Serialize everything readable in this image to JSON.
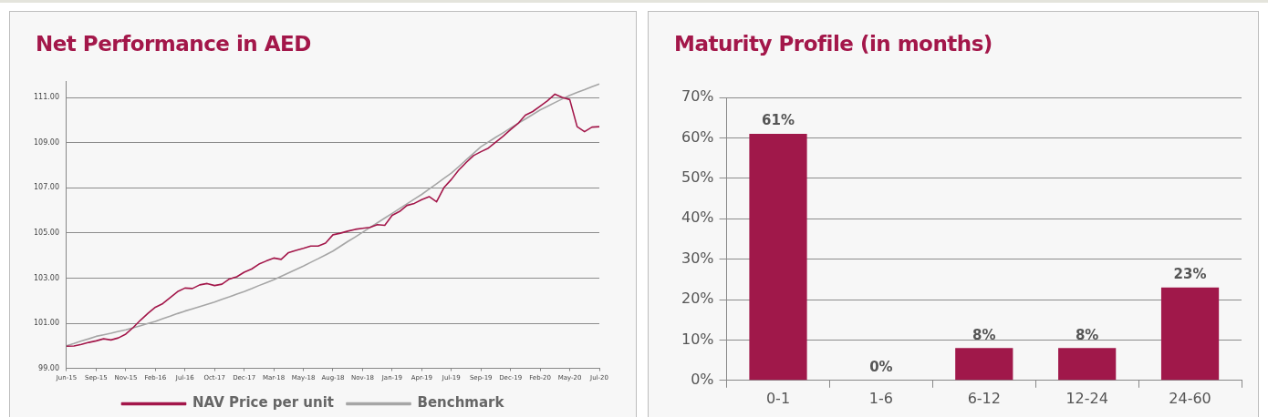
{
  "chart_data": [
    {
      "type": "line",
      "title": "Net Performance in AED",
      "categories": [
        "Jun-15",
        null,
        null,
        null,
        "Sep-15",
        null,
        null,
        null,
        "Nov-15",
        null,
        null,
        null,
        "Feb-16",
        null,
        null,
        null,
        "Jul-16",
        null,
        null,
        null,
        "Oct-17",
        null,
        null,
        null,
        "Dec-17",
        null,
        null,
        null,
        "Mar-18",
        null,
        null,
        null,
        "May-18",
        null,
        null,
        null,
        "Aug-18",
        null,
        null,
        null,
        "Nov-18",
        null,
        null,
        null,
        "Jan-19",
        null,
        null,
        null,
        "Apr-19",
        null,
        null,
        null,
        "Jul-19",
        null,
        null,
        null,
        "Sep-19",
        null,
        null,
        null,
        "Dec-19",
        null,
        null,
        null,
        "Feb-20",
        null,
        null,
        null,
        "May-20",
        null,
        null,
        null,
        "Jul-20"
      ],
      "series": [
        {
          "name": "NAV Price per unit",
          "color": "#a3174a",
          "values": [
            99.98,
            99.99,
            100.06,
            100.15,
            100.22,
            100.31,
            100.26,
            100.35,
            100.52,
            100.81,
            101.14,
            101.44,
            101.71,
            101.87,
            102.14,
            102.4,
            102.56,
            102.54,
            102.7,
            102.76,
            102.67,
            102.73,
            102.96,
            103.06,
            103.26,
            103.4,
            103.62,
            103.76,
            103.89,
            103.83,
            104.13,
            104.23,
            104.32,
            104.42,
            104.42,
            104.55,
            104.92,
            104.99,
            105.08,
            105.16,
            105.21,
            105.25,
            105.37,
            105.34,
            105.78,
            105.95,
            106.22,
            106.31,
            106.48,
            106.61,
            106.38,
            107.01,
            107.37,
            107.79,
            108.12,
            108.43,
            108.6,
            108.76,
            109.02,
            109.29,
            109.58,
            109.85,
            110.22,
            110.38,
            110.62,
            110.86,
            111.15,
            111.01,
            110.91,
            109.71,
            109.49,
            109.69,
            109.71
          ]
        },
        {
          "name": "Benchmark",
          "color": "#a6a6a6",
          "values": [
            100.0,
            100.1,
            100.21,
            100.31,
            100.42,
            100.49,
            100.56,
            100.64,
            100.71,
            100.8,
            100.89,
            100.99,
            101.08,
            101.2,
            101.31,
            101.43,
            101.54,
            101.64,
            101.74,
            101.84,
            101.94,
            102.06,
            102.17,
            102.29,
            102.4,
            102.53,
            102.67,
            102.8,
            102.93,
            103.08,
            103.23,
            103.38,
            103.53,
            103.7,
            103.86,
            104.03,
            104.2,
            104.41,
            104.62,
            104.82,
            105.03,
            105.24,
            105.45,
            105.66,
            105.87,
            106.08,
            106.29,
            106.5,
            106.71,
            106.95,
            107.18,
            107.42,
            107.65,
            107.94,
            108.24,
            108.53,
            108.82,
            109.03,
            109.24,
            109.44,
            109.65,
            109.85,
            110.05,
            110.25,
            110.45,
            110.61,
            110.78,
            110.94,
            111.1,
            111.23,
            111.35,
            111.48,
            111.6
          ]
        }
      ],
      "ylim": [
        99,
        111.7
      ],
      "yticks": [
        {
          "value": 99,
          "label": "99.00"
        },
        {
          "value": 101,
          "label": "101.00"
        },
        {
          "value": 103,
          "label": "103.00"
        },
        {
          "value": 105,
          "label": "105.00"
        },
        {
          "value": 107,
          "label": "107.00"
        },
        {
          "value": 109,
          "label": "109.00"
        },
        {
          "value": 111,
          "label": "111.00"
        }
      ],
      "grid": "y",
      "legend": "bottom",
      "marker": "none"
    },
    {
      "type": "bar",
      "title": "Maturity Profile (in months)",
      "categories": [
        "0-1",
        "1-6",
        "6-12",
        "12-24",
        "24-60"
      ],
      "values": [
        61,
        0,
        8,
        8,
        23
      ],
      "color": "#a0184a",
      "value_labels": [
        "61%",
        "0%",
        "8%",
        "8%",
        "23%"
      ],
      "ylim": [
        0,
        70
      ],
      "yticks": [
        {
          "value": 0,
          "label": "0%"
        },
        {
          "value": 10,
          "label": "10%"
        },
        {
          "value": 20,
          "label": "20%"
        },
        {
          "value": 30,
          "label": "30%"
        },
        {
          "value": 40,
          "label": "40%"
        },
        {
          "value": 50,
          "label": "50%"
        },
        {
          "value": 60,
          "label": "60%"
        },
        {
          "value": 70,
          "label": "70%"
        }
      ],
      "grid": "y"
    }
  ]
}
